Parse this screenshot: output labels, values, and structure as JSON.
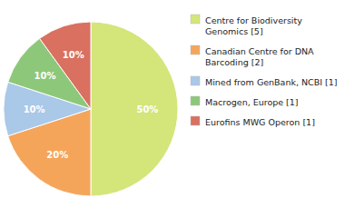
{
  "chart_data": {
    "type": "pie",
    "categories": [
      "Centre for Biodiversity\nGenomics [5]",
      "Canadian Centre for DNA\nBarcoding [2]",
      "Mined from GenBank, NCBI [1]",
      "Macrogen, Europe [1]",
      "Eurofins MWG Operon [1]"
    ],
    "values": [
      50,
      20,
      10,
      10,
      10
    ],
    "value_labels": [
      "50%",
      "20%",
      "10%",
      "10%",
      "10%"
    ],
    "colors": [
      "#d4e57a",
      "#f5a55a",
      "#aac8e8",
      "#8dc87a",
      "#d97060"
    ],
    "data_labels": true,
    "legend": "right"
  }
}
